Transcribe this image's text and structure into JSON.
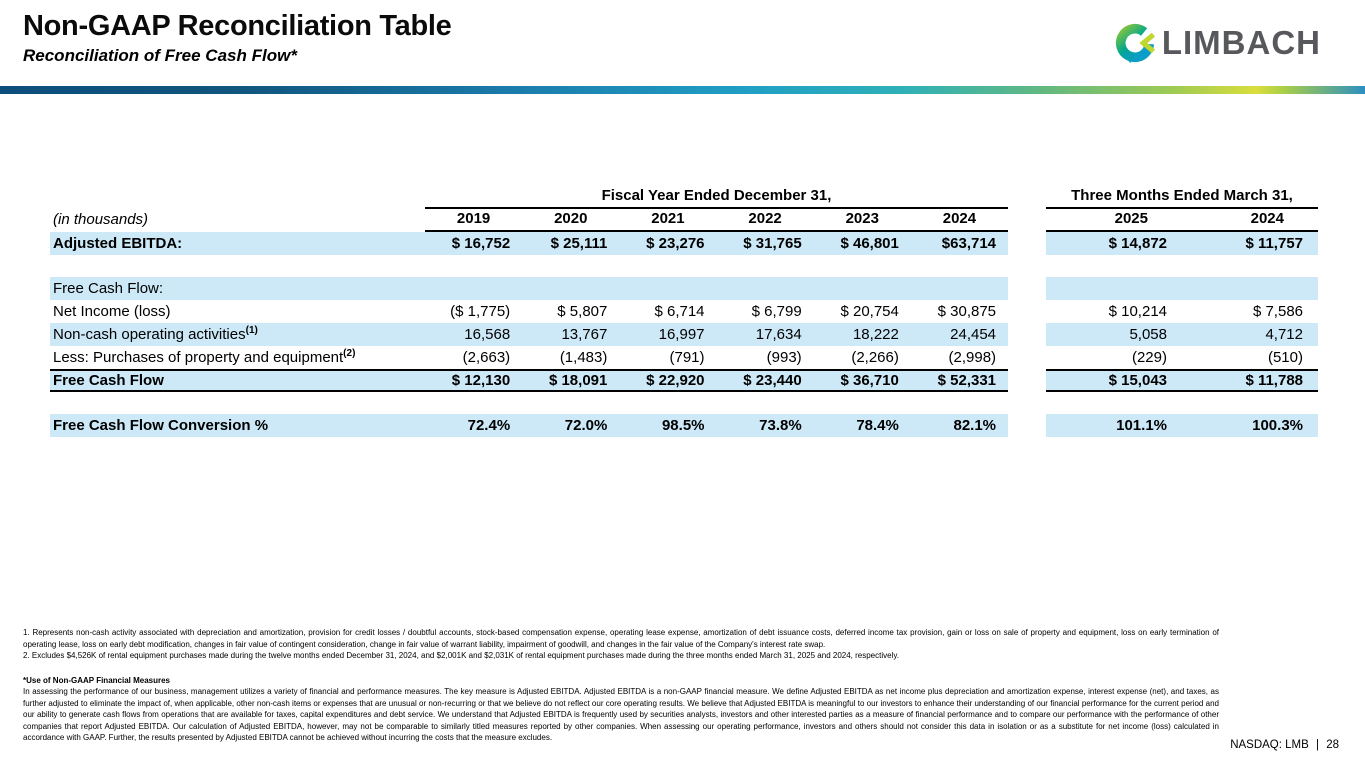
{
  "header": {
    "title": "Non-GAAP Reconciliation Table",
    "subtitle": "Reconciliation of Free Cash Flow*",
    "logo_text": "LIMBACH",
    "logo_colors": {
      "green": "#7cc242",
      "teal": "#00a78e",
      "blue": "#0b9dc7",
      "yellow_green": "#c0d72f",
      "text_gray": "#57585b"
    }
  },
  "table": {
    "group_headers": {
      "fiscal": "Fiscal Year Ended December 31,",
      "quarter": "Three Months Ended March 31,"
    },
    "unit_label": "(in thousands)",
    "fiscal_years": [
      "2019",
      "2020",
      "2021",
      "2022",
      "2023",
      "2024"
    ],
    "quarter_years": [
      "2025",
      "2024"
    ],
    "shade_color": "#cde9f8",
    "rows": [
      {
        "label": "Adjusted EBITDA:",
        "bold": true,
        "shaded": true,
        "fiscal": [
          "$ 16,752",
          "$ 25,111",
          "$ 23,276",
          "$ 31,765",
          "$ 46,801",
          "$63,714"
        ],
        "quarter": [
          "$ 14,872",
          "$ 11,757"
        ]
      },
      {
        "spacer": true
      },
      {
        "label": "Free Cash Flow:",
        "bold": false,
        "shaded": true,
        "fiscal": [
          "",
          "",
          "",
          "",
          "",
          ""
        ],
        "quarter": [
          "",
          ""
        ]
      },
      {
        "label": "Net Income (loss)",
        "bold": false,
        "shaded": false,
        "fiscal": [
          "($ 1,775)",
          "$ 5,807",
          "$ 6,714",
          "$ 6,799",
          "$ 20,754",
          "$ 30,875"
        ],
        "quarter": [
          "$ 10,214",
          "$ 7,586"
        ]
      },
      {
        "label": "Non-cash operating activities",
        "sup": "(1)",
        "bold": false,
        "shaded": true,
        "fiscal": [
          "16,568",
          "13,767",
          "16,997",
          "17,634",
          "18,222",
          "24,454"
        ],
        "quarter": [
          "5,058",
          "4,712"
        ]
      },
      {
        "label": "Less: Purchases of property and equipment",
        "sup": "(2)",
        "bold": false,
        "shaded": false,
        "fiscal": [
          "(2,663)",
          "(1,483)",
          "(791)",
          "(993)",
          "(2,266)",
          "(2,998)"
        ],
        "quarter": [
          "(229)",
          "(510)"
        ]
      },
      {
        "label": "Free Cash Flow",
        "bold": true,
        "shaded": true,
        "total": true,
        "fiscal": [
          "$ 12,130",
          "$ 18,091",
          "$ 22,920",
          "$ 23,440",
          "$ 36,710",
          "$ 52,331"
        ],
        "quarter": [
          "$ 15,043",
          "$ 11,788"
        ]
      },
      {
        "spacer": true
      },
      {
        "label": "Free Cash Flow Conversion %",
        "bold": true,
        "shaded": true,
        "fiscal": [
          "72.4%",
          "72.0%",
          "98.5%",
          "73.8%",
          "78.4%",
          "82.1%"
        ],
        "quarter": [
          "101.1%",
          "100.3%"
        ]
      }
    ]
  },
  "notes": [
    "1. Represents non-cash activity associated with depreciation and amortization, provision for credit losses / doubtful accounts, stock-based compensation expense, operating lease expense, amortization of debt issuance costs, deferred income tax provision, gain or loss on sale of property and equipment, loss on early termination of operating lease, loss on early debt modification, changes in fair value of contingent consideration, change in fair value of warrant liability, impairment of goodwill, and changes in the fair value of the Company's interest rate swap.",
    "2. Excludes $4,526K of rental equipment purchases made during the twelve months ended December 31, 2024, and $2,001K and $2,031K of rental equipment purchases made during the three months ended March 31, 2025 and 2024, respectively."
  ],
  "measures": {
    "heading": "*Use of Non-GAAP Financial Measures",
    "text": "In assessing the performance of our business, management utilizes a variety of financial and performance measures. The key measure is Adjusted EBITDA. Adjusted EBITDA is a non-GAAP financial measure. We define Adjusted EBITDA as net income plus depreciation and amortization expense, interest expense (net), and taxes, as further adjusted to eliminate the impact of, when applicable, other non-cash items or expenses that are unusual or non-recurring or that we believe do not reflect our core operating results. We believe that Adjusted EBITDA is meaningful to our investors to enhance their understanding of our financial performance for the current period and our ability to generate cash flows from operations that are available for taxes, capital expenditures and debt service. We understand that Adjusted EBITDA is frequently used by securities analysts, investors and other interested parties as a measure of financial performance and to compare our performance with the performance of other companies that report Adjusted EBITDA. Our calculation of Adjusted EBITDA, however, may not be comparable to similarly titled measures reported by other companies. When assessing our operating performance, investors and others should not consider this data in isolation or as a substitute for net income (loss) calculated in accordance with GAAP. Further, the results presented by Adjusted EBITDA cannot be achieved without incurring the costs that the measure excludes."
  },
  "footer": {
    "ticker": "NASDAQ: LMB",
    "separator": "|",
    "page_number": "28"
  }
}
